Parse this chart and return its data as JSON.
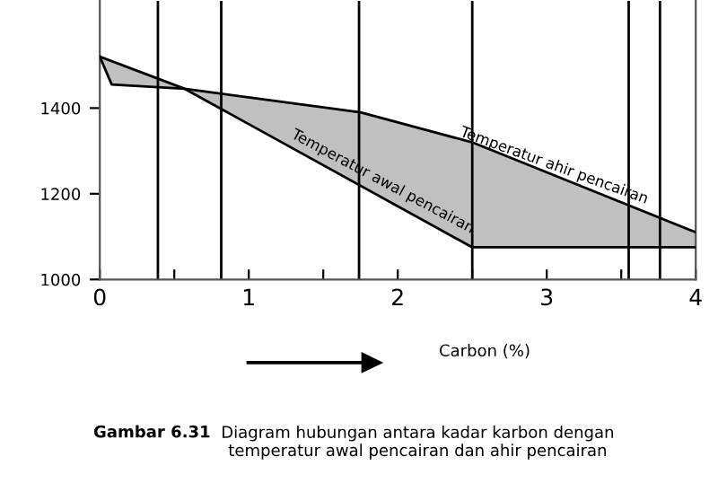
{
  "chart_data": {
    "type": "line",
    "xlabel": "Carbon (%)",
    "series": [
      {
        "name": "Temperatur ahir pencairan",
        "color": "#000000",
        "x": [
          0,
          0.08,
          0.57,
          1.75,
          2.5,
          4
        ],
        "values": [
          1520,
          1455,
          1445,
          1390,
          1320,
          1110
        ]
      },
      {
        "name": "Temperatur awal pencairan",
        "color": "#000000",
        "x": [
          0,
          0.57,
          2.5,
          4
        ],
        "values": [
          1520,
          1445,
          1075,
          1075
        ]
      }
    ],
    "xlim": [
      0,
      4
    ],
    "ylim": [
      1000,
      1650
    ],
    "xticks": [
      0,
      {
        "value": 0.5,
        "label": null
      },
      1,
      {
        "value": 1.5,
        "label": null
      },
      2,
      {
        "value": 2.5,
        "label": null
      },
      3,
      {
        "value": 3.5,
        "label": null
      },
      4
    ],
    "yticks": [
      1000,
      1200,
      1400
    ],
    "ref_lines": [
      {
        "axis": "x",
        "value": 0.39,
        "color": "#000000"
      },
      {
        "axis": "x",
        "value": 0.815,
        "color": "#000000"
      },
      {
        "axis": "x",
        "value": 1.74,
        "color": "#000000"
      },
      {
        "axis": "x",
        "value": 2.5,
        "color": "#000000"
      },
      {
        "axis": "x",
        "value": 3.55,
        "color": "#000000"
      },
      {
        "axis": "x",
        "value": 3.76,
        "color": "#000000"
      }
    ],
    "annotations": [
      "Gambar 6.31",
      "Diagram hubungan antara kadar karbon dengan\ntemperatur awal pencairan dan ahir pencairan"
    ],
    "grid": false,
    "legend": false,
    "marker": "none",
    "line_style": "solid"
  }
}
